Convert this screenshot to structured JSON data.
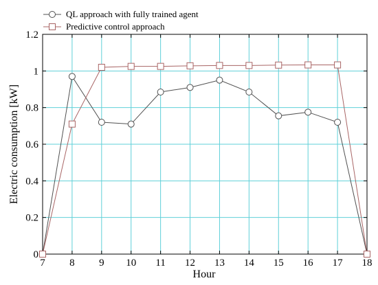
{
  "chart_data": {
    "type": "line",
    "title": "",
    "xlabel": "Hour",
    "ylabel": "Electric consumption [kW]",
    "x": [
      7,
      8,
      9,
      10,
      11,
      12,
      13,
      14,
      15,
      16,
      17,
      18
    ],
    "xlim": [
      7,
      18
    ],
    "ylim": [
      0,
      1.2
    ],
    "xticks": [
      "7",
      "8",
      "9",
      "10",
      "11",
      "12",
      "13",
      "14",
      "15",
      "16",
      "17",
      "18"
    ],
    "yticks": [
      "0",
      "0.2",
      "0.4",
      "0.6",
      "0.8",
      "1",
      "1.2"
    ],
    "ytick_values": [
      0,
      0.2,
      0.4,
      0.6,
      0.8,
      1.0,
      1.2
    ],
    "grid": true,
    "grid_color": "#5fd0d8",
    "legend_position": "top-left",
    "series": [
      {
        "name": "QL approach with fully trained agent",
        "marker": "circle",
        "color": "#505050",
        "values": [
          0.0,
          0.97,
          0.72,
          0.71,
          0.885,
          0.91,
          0.95,
          0.885,
          0.755,
          0.775,
          0.72,
          0.0
        ]
      },
      {
        "name": "Predictive control approach",
        "marker": "square",
        "color": "#a86464",
        "values": [
          0.0,
          0.71,
          1.02,
          1.025,
          1.025,
          1.028,
          1.03,
          1.03,
          1.032,
          1.033,
          1.033,
          0.0
        ]
      }
    ]
  }
}
